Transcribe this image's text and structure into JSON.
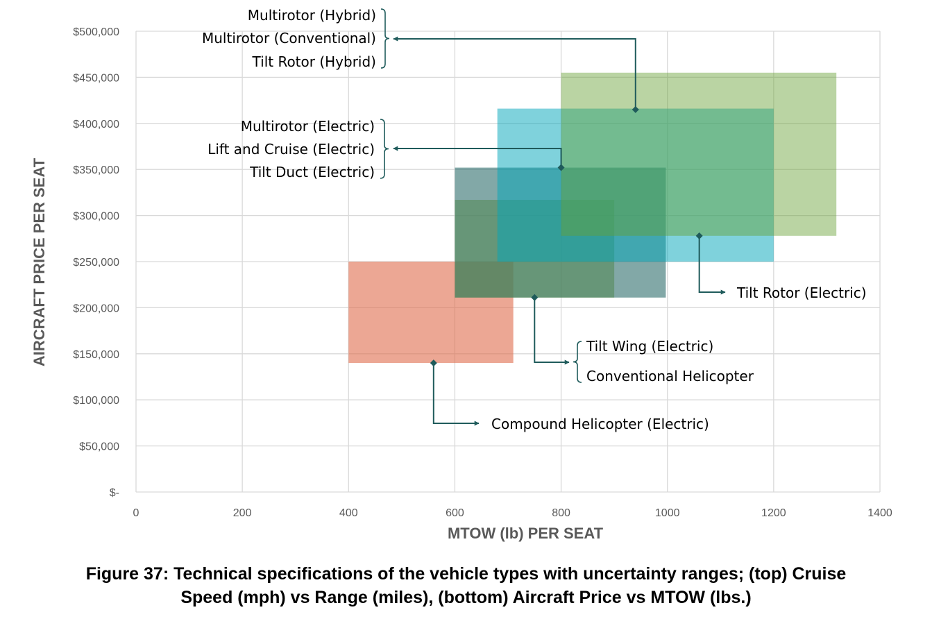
{
  "chart_data": {
    "type": "range-box",
    "xlabel": "MTOW (lb) PER SEAT",
    "ylabel": "AIRCRAFT PRICE PER SEAT",
    "xlim": [
      0,
      1400
    ],
    "ylim": [
      0,
      500000
    ],
    "x_ticks": [
      0,
      200,
      400,
      600,
      800,
      1000,
      1200,
      1400
    ],
    "x_tick_labels": [
      "0",
      "200",
      "400",
      "600",
      "800",
      "1000",
      "1200",
      "1400"
    ],
    "y_ticks": [
      0,
      50000,
      100000,
      150000,
      200000,
      250000,
      300000,
      350000,
      400000,
      450000,
      500000
    ],
    "y_tick_labels": [
      "$-",
      "$50,000",
      "$100,000",
      "$150,000",
      "$200,000",
      "$250,000",
      "$300,000",
      "$350,000",
      "$400,000",
      "$450,000",
      "$500,000"
    ],
    "grid": true,
    "series": [
      {
        "labels": [
          "Compound Helicopter (Electric)"
        ],
        "x_range": [
          400,
          710
        ],
        "y_range": [
          140000,
          250000
        ],
        "point": [
          560,
          140000
        ],
        "color": "#E06C4C"
      },
      {
        "labels": [
          "Tilt Wing (Electric)",
          "Conventional Helicopter"
        ],
        "x_range": [
          600,
          900
        ],
        "y_range": [
          211000,
          317000
        ],
        "point": [
          750,
          211000
        ],
        "color": "#8DB43A"
      },
      {
        "labels": [
          "Multirotor (Electric)",
          "Lift and Cruise (Electric)",
          "Tilt Duct (Electric)"
        ],
        "x_range": [
          600,
          997
        ],
        "y_range": [
          211000,
          352000
        ],
        "point": [
          800,
          352000
        ],
        "color": "#2F6E6C"
      },
      {
        "labels": [
          "Tilt Rotor (Electric)"
        ],
        "x_range": [
          680,
          1200
        ],
        "y_range": [
          250000,
          416000
        ],
        "point": [
          1060,
          278000
        ],
        "color": "#00A6B9"
      },
      {
        "labels": [
          "Multirotor (Hybrid)",
          "Multirotor (Conventional)",
          "Tilt Rotor (Hybrid)"
        ],
        "x_range": [
          800,
          1318
        ],
        "y_range": [
          278000,
          455000
        ],
        "point": [
          940,
          415000
        ],
        "color": "#66A032"
      }
    ]
  },
  "caption": {
    "line1": "Figure 37: Technical specifications of the vehicle types with uncertainty ranges; (top) Cruise",
    "line2": "Speed (mph) vs Range (miles), (bottom) Aircraft Price vs MTOW (lbs.)"
  },
  "colors": {
    "connector": "#1F5B5B",
    "grid": "#D9D9D9"
  }
}
